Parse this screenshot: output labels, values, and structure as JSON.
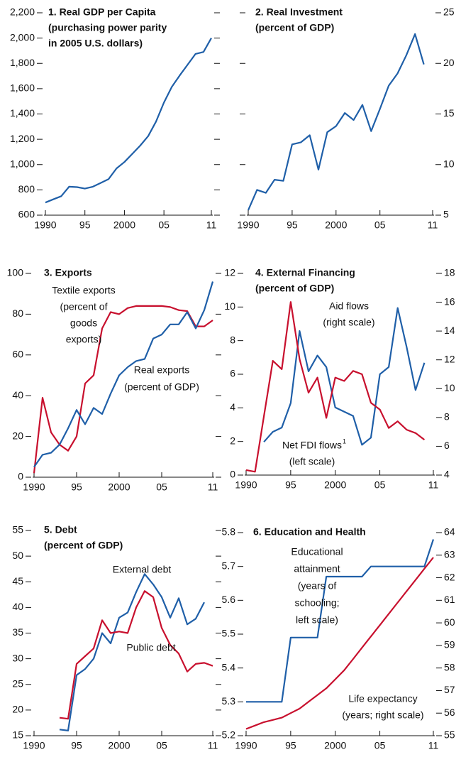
{
  "chart_data": [
    {
      "type": "line",
      "title": [
        "1. Real GDP per Capita",
        "(purchasing power parity",
        "in 2005 U.S. dollars)"
      ],
      "x": [
        1990,
        1991,
        1992,
        1993,
        1994,
        1995,
        1996,
        1997,
        1998,
        1999,
        2000,
        2001,
        2002,
        2003,
        2004,
        2005,
        2006,
        2007,
        2008,
        2009,
        2010,
        2011
      ],
      "xlim": [
        1990,
        2011
      ],
      "xticks": [
        1990,
        {
          "value": 1995,
          "label": "95"
        },
        2000,
        {
          "value": 2005,
          "label": "05"
        },
        {
          "value": 2011,
          "label": "11"
        }
      ],
      "ylim": [
        600,
        2200
      ],
      "yticks": [
        600,
        800,
        {
          "value": 1000,
          "label": "1,000"
        },
        {
          "value": 1200,
          "label": "1,200"
        },
        {
          "value": 1400,
          "label": "1,400"
        },
        {
          "value": 1600,
          "label": "1,600"
        },
        {
          "value": 1800,
          "label": "1,800"
        },
        {
          "value": 2000,
          "label": "2,000"
        },
        {
          "value": 2200,
          "label": "2,200"
        }
      ],
      "y_side": "left",
      "series": [
        {
          "color": "#1f5fa8",
          "values": [
            700,
            725,
            750,
            825,
            822,
            810,
            825,
            855,
            885,
            970,
            1020,
            1085,
            1150,
            1225,
            1340,
            1490,
            1615,
            1705,
            1790,
            1875,
            1890,
            2000
          ]
        }
      ]
    },
    {
      "type": "line",
      "title": [
        "2.  Real Investment",
        "(percent of GDP)"
      ],
      "x": [
        1990,
        1991,
        1992,
        1993,
        1994,
        1995,
        1996,
        1997,
        1998,
        1999,
        2000,
        2001,
        2002,
        2003,
        2004,
        2005,
        2006,
        2007,
        2008,
        2009,
        2010
      ],
      "xlim": [
        1990,
        2011
      ],
      "xticks": [
        1990,
        {
          "value": 1995,
          "label": "95"
        },
        2000,
        {
          "value": 2005,
          "label": "05"
        },
        {
          "value": 2011,
          "label": "11"
        }
      ],
      "ylim": [
        5,
        25
      ],
      "yticks": [
        5,
        10,
        15,
        20,
        25
      ],
      "y_side": "right",
      "series": [
        {
          "color": "#1f5fa8",
          "values": [
            5.5,
            7.5,
            7.2,
            8.5,
            8.4,
            12.0,
            12.2,
            12.9,
            9.5,
            13.2,
            13.8,
            15.1,
            14.4,
            15.9,
            13.3,
            15.5,
            17.8,
            19.0,
            20.8,
            22.9,
            19.9
          ]
        }
      ]
    },
    {
      "type": "line",
      "title": [
        "3. Exports"
      ],
      "x": [
        1990,
        1991,
        1992,
        1993,
        1994,
        1995,
        1996,
        1997,
        1998,
        1999,
        2000,
        2001,
        2002,
        2003,
        2004,
        2005,
        2006,
        2007,
        2008,
        2009,
        2010,
        2011
      ],
      "xlim": [
        1990,
        2011
      ],
      "xticks": [
        1990,
        {
          "value": 1995,
          "label": "95"
        },
        2000,
        {
          "value": 2005,
          "label": "05"
        },
        {
          "value": 2011,
          "label": "11"
        }
      ],
      "ylim": [
        0,
        100
      ],
      "yticks": [
        0,
        20,
        40,
        60,
        80,
        100
      ],
      "y_side": "left",
      "series": [
        {
          "name": [
            "Textile exports",
            "(percent of",
            "goods",
            "exports)"
          ],
          "color": "#c8102e",
          "values": [
            2,
            39,
            22,
            16,
            13,
            20,
            46,
            50,
            73,
            81,
            80,
            83,
            84,
            84,
            84,
            84,
            83.5,
            82,
            81.5,
            74,
            74,
            77
          ]
        },
        {
          "name": [
            "Real exports",
            "(percent of GDP)"
          ],
          "color": "#1f5fa8",
          "values": [
            5,
            11,
            12,
            16,
            24,
            33,
            26,
            34,
            31,
            41,
            50,
            54,
            57,
            58,
            68,
            70,
            75,
            75,
            81,
            73,
            82,
            96
          ]
        }
      ]
    },
    {
      "type": "line",
      "title": [
        "4. External Financing",
        "(percent of GDP)"
      ],
      "x": [
        1990,
        1991,
        1992,
        1993,
        1994,
        1995,
        1996,
        1997,
        1998,
        1999,
        2000,
        2001,
        2002,
        2003,
        2004,
        2005,
        2006,
        2007,
        2008,
        2009,
        2010
      ],
      "xlim": [
        1990,
        2011
      ],
      "xticks": [
        1990,
        {
          "value": 1995,
          "label": "95"
        },
        2000,
        {
          "value": 2005,
          "label": "05"
        },
        {
          "value": 2011,
          "label": "11"
        }
      ],
      "ylim": [
        0,
        12
      ],
      "yticks": [
        0,
        2,
        4,
        6,
        8,
        10,
        12
      ],
      "y_side": "left",
      "y2lim": [
        4,
        18
      ],
      "y2ticks": [
        4,
        6,
        8,
        10,
        12,
        14,
        16,
        18
      ],
      "series": [
        {
          "name": [
            "Aid flows",
            "(right scale)"
          ],
          "color": "#1f5fa8",
          "axis": "y2",
          "values": [
            null,
            null,
            6.3,
            7.0,
            7.3,
            9.0,
            14.0,
            11.2,
            12.3,
            11.5,
            8.7,
            8.4,
            8.1,
            6.1,
            6.6,
            11.0,
            11.5,
            15.6,
            12.9,
            9.9,
            11.8
          ]
        },
        {
          "name": [
            "Net FDI flows",
            "(left scale)"
          ],
          "name_sup": "1",
          "color": "#c8102e",
          "values": [
            0.3,
            0.2,
            3.5,
            6.8,
            6.3,
            10.3,
            6.9,
            4.9,
            5.8,
            3.4,
            5.8,
            5.6,
            6.2,
            6.0,
            4.3,
            3.9,
            2.8,
            3.2,
            2.7,
            2.5,
            2.1
          ]
        }
      ]
    },
    {
      "type": "line",
      "title": [
        "5. Debt",
        "(percent of GDP)"
      ],
      "x": [
        1993,
        1994,
        1995,
        1996,
        1997,
        1998,
        1999,
        2000,
        2001,
        2002,
        2003,
        2004,
        2005,
        2006,
        2007,
        2008,
        2009,
        2010,
        2011
      ],
      "xlim": [
        1990,
        2011
      ],
      "xticks": [
        1990,
        {
          "value": 1995,
          "label": "95"
        },
        2000,
        {
          "value": 2005,
          "label": "05"
        },
        {
          "value": 2011,
          "label": "11"
        }
      ],
      "ylim": [
        15,
        55
      ],
      "yticks": [
        15,
        20,
        25,
        30,
        35,
        40,
        45,
        50,
        55
      ],
      "y_side": "left",
      "series": [
        {
          "name": [
            "External debt"
          ],
          "color": "#1f5fa8",
          "values": [
            16.2,
            16.0,
            26.8,
            28.0,
            30.0,
            35.0,
            33.0,
            38.0,
            39.0,
            43.0,
            46.5,
            44.5,
            42.0,
            38.0,
            41.8,
            36.7,
            37.8,
            41.0,
            null
          ]
        },
        {
          "name": [
            "Public debt"
          ],
          "color": "#c8102e",
          "values": [
            18.5,
            18.3,
            29.0,
            30.5,
            32.0,
            37.5,
            35.0,
            35.3,
            35.0,
            40.0,
            43.2,
            42.0,
            36.0,
            32.7,
            31.0,
            27.5,
            29.0,
            29.2,
            28.6
          ]
        }
      ]
    },
    {
      "type": "line",
      "title": [
        "6. Education and Health"
      ],
      "x": [
        1990,
        1991,
        1992,
        1993,
        1994,
        1995,
        1996,
        1997,
        1998,
        1999,
        2000,
        2001,
        2002,
        2003,
        2004,
        2005,
        2006,
        2007,
        2008,
        2009,
        2010,
        2011
      ],
      "xlim": [
        1990,
        2011
      ],
      "xticks": [
        1990,
        {
          "value": 1995,
          "label": "95"
        },
        2000,
        {
          "value": 2005,
          "label": "05"
        },
        {
          "value": 2011,
          "label": "11"
        }
      ],
      "ylim": [
        5.2,
        5.8
      ],
      "yticks": [
        5.2,
        5.3,
        5.4,
        5.5,
        5.6,
        5.7,
        5.8
      ],
      "y_side": "left",
      "y2lim": [
        55,
        64
      ],
      "y2ticks": [
        55,
        56,
        57,
        58,
        59,
        60,
        61,
        62,
        63,
        64
      ],
      "series": [
        {
          "name": [
            "Educational",
            "attainment",
            "(years of",
            "schooling;",
            "left scale)"
          ],
          "color": "#1f5fa8",
          "values": [
            5.3,
            5.3,
            5.3,
            5.3,
            5.3,
            5.49,
            5.49,
            5.49,
            5.49,
            5.67,
            5.67,
            5.67,
            5.67,
            5.67,
            5.7,
            5.7,
            5.7,
            5.7,
            5.7,
            5.7,
            5.7,
            5.78
          ]
        },
        {
          "name": [
            "Life expectancy",
            "(years; right scale)"
          ],
          "color": "#c8102e",
          "axis": "y2",
          "values": [
            55.3,
            55.45,
            55.6,
            55.7,
            55.8,
            56.0,
            56.2,
            56.5,
            56.8,
            57.1,
            57.5,
            57.9,
            58.4,
            58.9,
            59.4,
            59.9,
            60.4,
            60.9,
            61.4,
            61.9,
            62.4,
            62.9
          ]
        }
      ]
    }
  ]
}
